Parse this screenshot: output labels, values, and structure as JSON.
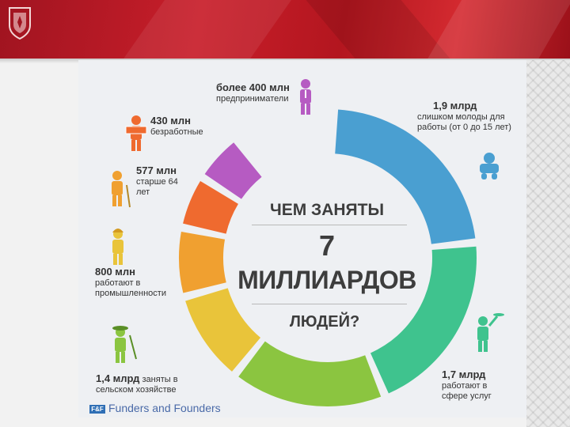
{
  "chart_data": {
    "type": "pie",
    "title": "ЧЕМ ЗАНЯТЫ 7 МИЛЛИАРДОВ ЛЮДЕЙ?",
    "title_parts": {
      "line1": "ЧЕМ ЗАНЯТЫ",
      "number": "7",
      "line2": "МИЛЛИАРДОВ",
      "line3": "ЛЮДЕЙ?"
    },
    "slices": [
      {
        "value_text": "1,9 млрд",
        "value": 1900,
        "description": "слишком молоды для работы (от 0 до 15 лет)",
        "color": "#4a9fd1",
        "icon": "baby-icon"
      },
      {
        "value_text": "1,7 млрд",
        "value": 1700,
        "description": "работают в сфере услуг",
        "color": "#3fc38e",
        "icon": "waiter-icon"
      },
      {
        "value_text": "1,4 млрд",
        "value": 1400,
        "description": "заняты в сельском хозяйстве",
        "color": "#8bc540",
        "icon": "farmer-icon"
      },
      {
        "value_text": "800 млн",
        "value": 800,
        "description": "работают в промышленности",
        "color": "#e9c43a",
        "icon": "worker-icon"
      },
      {
        "value_text": "577 млн",
        "value": 577,
        "description": "старше 64 лет",
        "color": "#f0a030",
        "icon": "elderly-icon"
      },
      {
        "value_text": "430 млн",
        "value": 430,
        "description": "безработные",
        "color": "#ef6a2f",
        "icon": "unemployed-icon"
      },
      {
        "value_text": "более 400 млн",
        "value": 400,
        "description": "предприниматели",
        "color": "#b65bc2",
        "icon": "businessman-icon"
      }
    ],
    "legend": "labels around ring"
  },
  "brand": {
    "mark": "F&F",
    "name": "Funders and Founders"
  },
  "colors": {
    "header_red": "#c81e2a",
    "panel_bg": "#eef0f3",
    "text": "#3d3d3d"
  }
}
